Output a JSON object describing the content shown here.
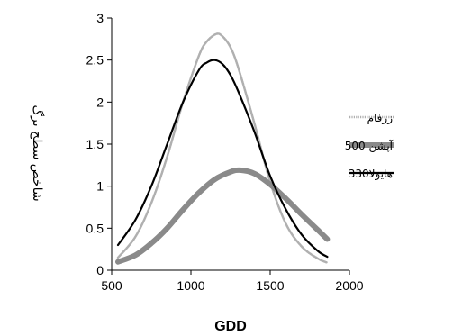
{
  "chart_data": {
    "type": "line",
    "title": "",
    "xlabel": "GDD",
    "ylabel": "شاخص سطح برگ",
    "xlim": [
      500,
      2000
    ],
    "ylim": [
      0,
      3
    ],
    "x_ticks": [
      "500",
      "1000",
      "1500",
      "2000"
    ],
    "y_ticks": [
      "0",
      "0.5",
      "1",
      "1.5",
      "2",
      "2.5",
      "3"
    ],
    "grid": false,
    "legend_position": "right",
    "series": [
      {
        "name": "زرفام",
        "style": "light-gray-dotted",
        "color": "#b0b0b0",
        "x": [
          540,
          650,
          750,
          850,
          950,
          1050,
          1100,
          1160,
          1200,
          1250,
          1300,
          1400,
          1500,
          1600,
          1700,
          1800,
          1860
        ],
        "y": [
          0.15,
          0.4,
          0.8,
          1.35,
          2.0,
          2.55,
          2.72,
          2.81,
          2.78,
          2.65,
          2.4,
          1.75,
          1.05,
          0.55,
          0.28,
          0.14,
          0.09
        ]
      },
      {
        "name": "آپشن 500",
        "style": "thick-gray",
        "color": "#8a8a8a",
        "x": [
          540,
          650,
          750,
          850,
          950,
          1050,
          1150,
          1250,
          1310,
          1400,
          1500,
          1600,
          1700,
          1800,
          1860
        ],
        "y": [
          0.1,
          0.18,
          0.32,
          0.5,
          0.72,
          0.92,
          1.08,
          1.17,
          1.19,
          1.15,
          1.02,
          0.85,
          0.66,
          0.48,
          0.37
        ]
      },
      {
        "name": "هایولا330",
        "style": "black-solid",
        "color": "#000000",
        "x": [
          540,
          650,
          750,
          850,
          950,
          1050,
          1100,
          1150,
          1200,
          1250,
          1300,
          1400,
          1500,
          1600,
          1700,
          1800,
          1860
        ],
        "y": [
          0.3,
          0.6,
          1.0,
          1.5,
          2.0,
          2.38,
          2.47,
          2.5,
          2.45,
          2.32,
          2.12,
          1.65,
          1.12,
          0.72,
          0.42,
          0.23,
          0.16
        ]
      }
    ]
  }
}
